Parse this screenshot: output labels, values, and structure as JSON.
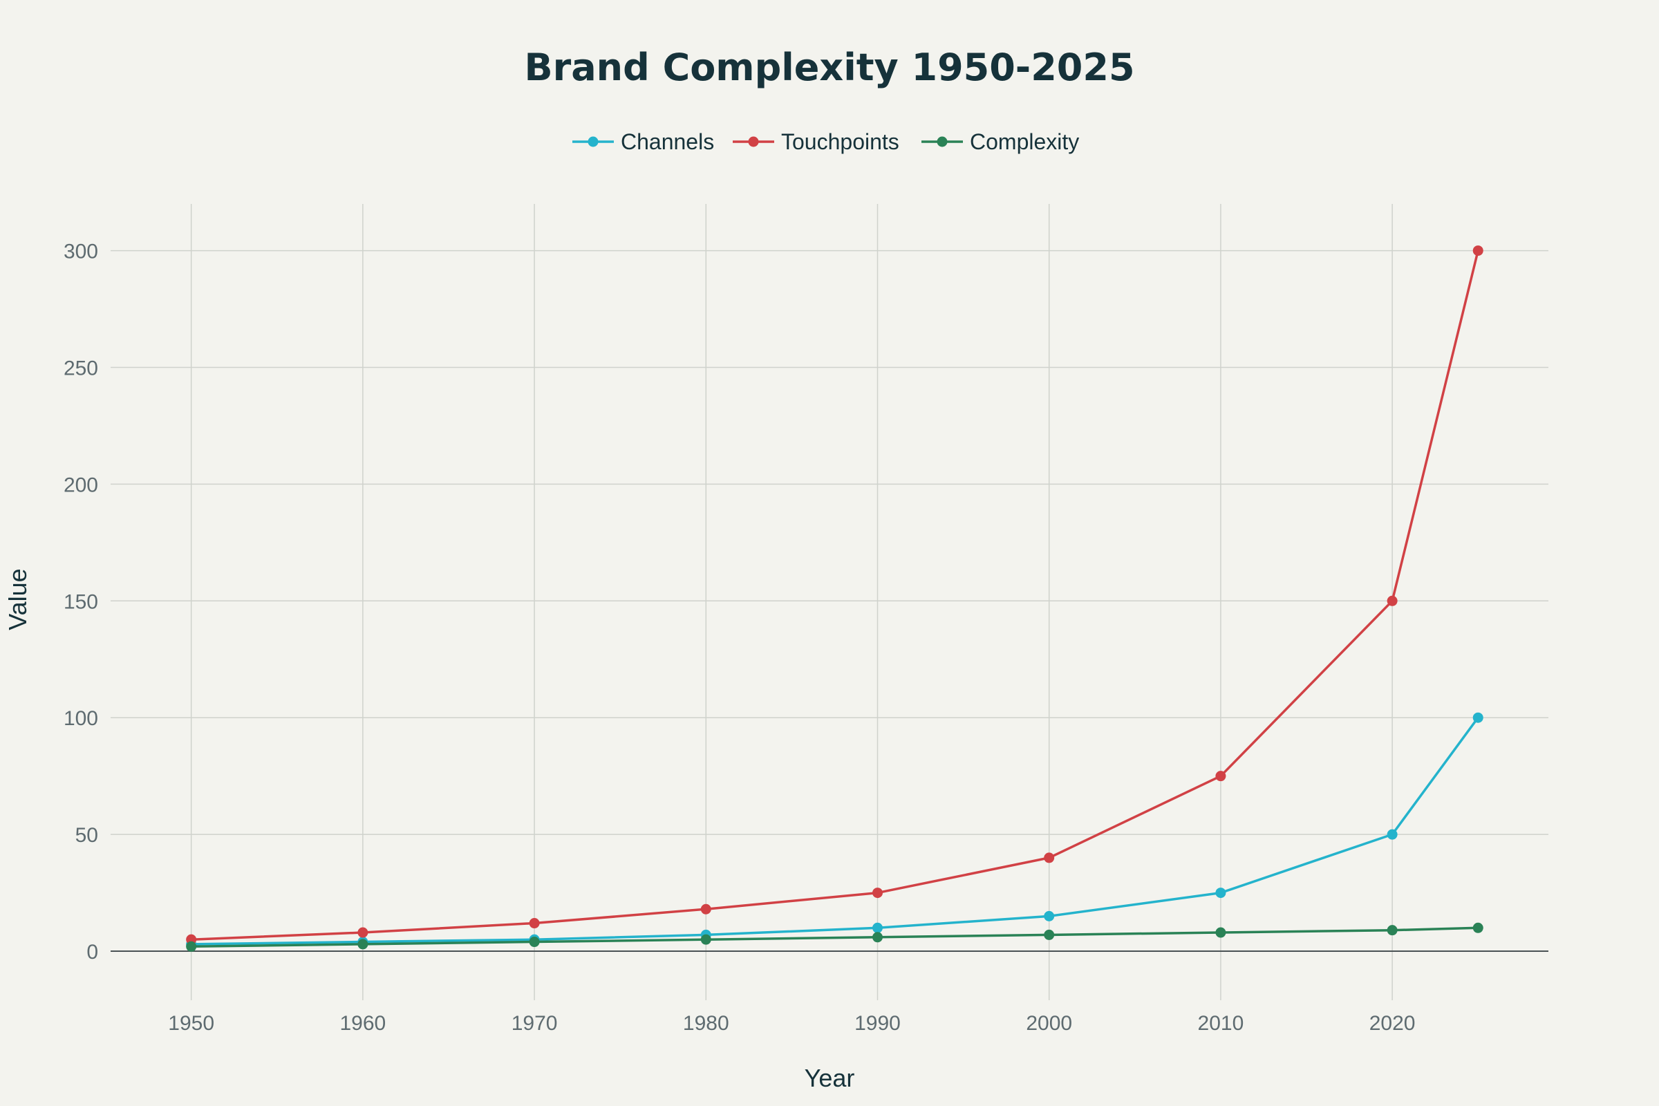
{
  "chart_data": {
    "type": "line",
    "title": "Brand Complexity 1950-2025",
    "xlabel": "Year",
    "ylabel": "Value",
    "x": [
      1950,
      1960,
      1970,
      1980,
      1990,
      2000,
      2010,
      2020,
      2025
    ],
    "x_ticks": [
      1950,
      1960,
      1970,
      1980,
      1990,
      2000,
      2010,
      2020
    ],
    "x_tick_labels": [
      "1950",
      "1960",
      "1970",
      "1980",
      "1990",
      "2000",
      "2010",
      "2020"
    ],
    "y_ticks": [
      0,
      50,
      100,
      150,
      200,
      250,
      300
    ],
    "y_tick_labels": [
      "0",
      "50",
      "100",
      "150",
      "200",
      "250",
      "300"
    ],
    "xlim": [
      1945.3,
      2029.1
    ],
    "ylim": [
      -21,
      320
    ],
    "grid": true,
    "legend_position": "top-center",
    "series": [
      {
        "name": "Channels",
        "color": "#24b3cc",
        "values": [
          3,
          4,
          5,
          7,
          10,
          15,
          25,
          50,
          100
        ]
      },
      {
        "name": "Touchpoints",
        "color": "#d14145",
        "values": [
          5,
          8,
          12,
          18,
          25,
          40,
          75,
          150,
          300
        ]
      },
      {
        "name": "Complexity",
        "color": "#2a8256",
        "values": [
          2,
          3,
          4,
          5,
          6,
          7,
          8,
          9,
          10
        ]
      }
    ]
  }
}
